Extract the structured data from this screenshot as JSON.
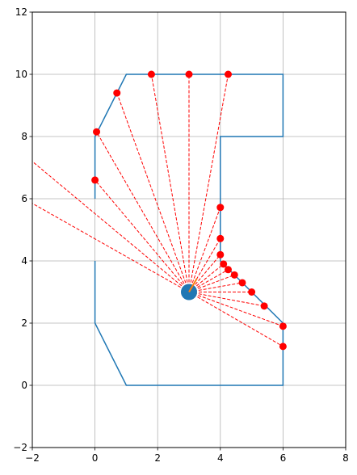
{
  "chart_data": {
    "type": "line",
    "title": "",
    "xlabel": "",
    "ylabel": "",
    "xlim": [
      -2,
      8
    ],
    "ylim": [
      -2,
      12
    ],
    "xticks": [
      -2,
      0,
      2,
      4,
      6,
      8
    ],
    "yticks": [
      -2,
      0,
      2,
      4,
      6,
      8,
      10,
      12
    ],
    "grid": true,
    "colors": {
      "outline": "#1f77b4",
      "rays": "#ff0000",
      "hits": "#ff0000",
      "robot": "#1f77b4",
      "heading": "#ff7f0e"
    },
    "outline_segments": [
      [
        [
          0,
          4
        ],
        [
          0,
          2
        ],
        [
          1,
          0
        ],
        [
          6,
          0
        ],
        [
          6,
          2
        ],
        [
          4,
          4
        ],
        [
          4,
          8
        ],
        [
          6,
          8
        ],
        [
          6,
          10
        ],
        [
          1,
          10
        ],
        [
          0,
          8
        ],
        [
          0,
          6
        ]
      ]
    ],
    "robot": {
      "x": 3.0,
      "y": 3.0,
      "heading_deg": 60
    },
    "hit_points": [
      [
        6.0,
        1.25
      ],
      [
        6.0,
        1.9
      ],
      [
        5.4,
        2.55
      ],
      [
        5.0,
        3.0
      ],
      [
        4.7,
        3.3
      ],
      [
        4.45,
        3.55
      ],
      [
        4.25,
        3.72
      ],
      [
        4.1,
        3.9
      ],
      [
        4.0,
        4.2
      ],
      [
        4.0,
        4.72
      ],
      [
        4.0,
        5.72
      ],
      [
        4.25,
        10.0
      ],
      [
        3.0,
        10.0
      ],
      [
        1.8,
        10.0
      ],
      [
        0.7,
        9.4
      ],
      [
        0.05,
        8.15
      ],
      [
        0.0,
        6.6
      ]
    ],
    "ray_ends_outside": [
      [
        -2.0,
        7.2
      ],
      [
        -2.0,
        5.85
      ]
    ]
  }
}
